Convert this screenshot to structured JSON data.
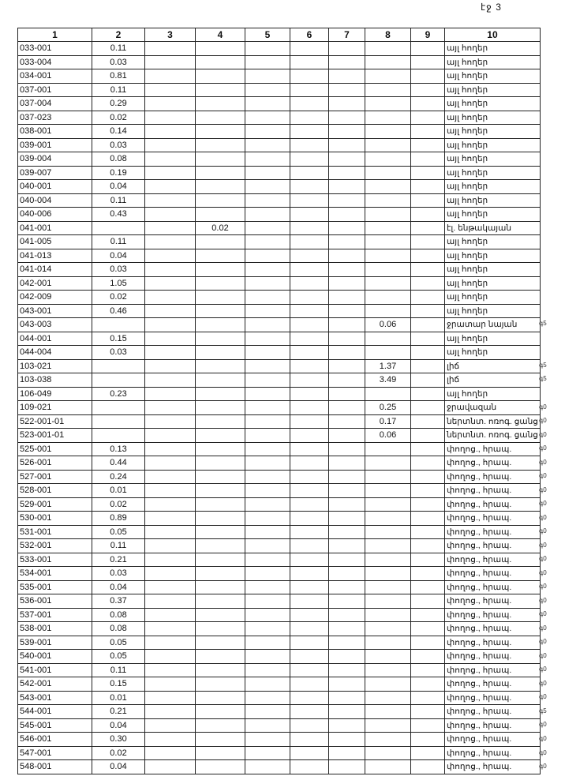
{
  "page_label": "էջ 3",
  "headers": [
    "1",
    "2",
    "3",
    "4",
    "5",
    "6",
    "7",
    "8",
    "9",
    "10"
  ],
  "rows": [
    [
      "033-001",
      "0.11",
      "",
      "",
      "այլ հողեր",
      ""
    ],
    [
      "033-004",
      "0.03",
      "",
      "",
      "այլ հողեր",
      ""
    ],
    [
      "034-001",
      "0.81",
      "",
      "",
      "այլ հողեր",
      ""
    ],
    [
      "037-001",
      "0.11",
      "",
      "",
      "այլ հողեր",
      ""
    ],
    [
      "037-004",
      "0.29",
      "",
      "",
      "այլ հողեր",
      ""
    ],
    [
      "037-023",
      "0.02",
      "",
      "",
      "այլ հողեր",
      ""
    ],
    [
      "038-001",
      "0.14",
      "",
      "",
      "այլ հողեր",
      ""
    ],
    [
      "039-001",
      "0.03",
      "",
      "",
      "այլ հողեր",
      ""
    ],
    [
      "039-004",
      "0.08",
      "",
      "",
      "այլ հողեր",
      ""
    ],
    [
      "039-007",
      "0.19",
      "",
      "",
      "այլ հողեր",
      ""
    ],
    [
      "040-001",
      "0.04",
      "",
      "",
      "այլ հողեր",
      ""
    ],
    [
      "040-004",
      "0.11",
      "",
      "",
      "այլ հողեր",
      ""
    ],
    [
      "040-006",
      "0.43",
      "",
      "",
      "այլ հողեր",
      ""
    ],
    [
      "041-001",
      "",
      "0.02",
      "",
      "էլ. ենթակայան",
      ""
    ],
    [
      "041-005",
      "0.11",
      "",
      "",
      "այլ հողեր",
      ""
    ],
    [
      "041-013",
      "0.04",
      "",
      "",
      "այլ հողեր",
      ""
    ],
    [
      "041-014",
      "0.03",
      "",
      "",
      "այլ հողեր",
      ""
    ],
    [
      "042-001",
      "1.05",
      "",
      "",
      "այլ հողեր",
      ""
    ],
    [
      "042-009",
      "0.02",
      "",
      "",
      "այլ հողեր",
      ""
    ],
    [
      "043-001",
      "0.46",
      "",
      "",
      "այլ հողեր",
      ""
    ],
    [
      "043-003",
      "",
      "",
      "0.06",
      "ջրատար նայան",
      "գ5"
    ],
    [
      "044-001",
      "0.15",
      "",
      "",
      "այլ հողեր",
      ""
    ],
    [
      "044-004",
      "0.03",
      "",
      "",
      "այլ հողեր",
      ""
    ],
    [
      "103-021",
      "",
      "",
      "1.37",
      "լիճ",
      "գ5"
    ],
    [
      "103-038",
      "",
      "",
      "3.49",
      "լիճ",
      "գ5"
    ],
    [
      "106-049",
      "0.23",
      "",
      "",
      "այլ հողեր",
      ""
    ],
    [
      "109-021",
      "",
      "",
      "0.25",
      "ջրավազան",
      "գ0"
    ],
    [
      "522-001-01",
      "",
      "",
      "0.17",
      "ներտնտ. ոռոգ. ցանց",
      "գ0"
    ],
    [
      "523-001-01",
      "",
      "",
      "0.06",
      "ներտնտ. ոռոգ. ցանց",
      "գ0"
    ],
    [
      "525-001",
      "0.13",
      "",
      "",
      "փողոց., հրապ.",
      "գ0"
    ],
    [
      "526-001",
      "0.44",
      "",
      "",
      "փողոց., հրապ.",
      "գ0"
    ],
    [
      "527-001",
      "0.24",
      "",
      "",
      "փողոց., հրապ.",
      "գ0"
    ],
    [
      "528-001",
      "0.01",
      "",
      "",
      "փողոց., հրապ.",
      "գ0"
    ],
    [
      "529-001",
      "0.02",
      "",
      "",
      "փողոց., հրապ.",
      "գ0"
    ],
    [
      "530-001",
      "0.89",
      "",
      "",
      "փողոց., հրապ.",
      "գ0"
    ],
    [
      "531-001",
      "0.05",
      "",
      "",
      "փողոց., հրապ.",
      "գ0"
    ],
    [
      "532-001",
      "0.11",
      "",
      "",
      "փողոց., հրապ.",
      "գ0"
    ],
    [
      "533-001",
      "0.21",
      "",
      "",
      "փողոց., հրապ.",
      "գ0"
    ],
    [
      "534-001",
      "0.03",
      "",
      "",
      "փողոց., հրապ.",
      "գ0"
    ],
    [
      "535-001",
      "0.04",
      "",
      "",
      "փողոց., հրապ.",
      "գ0"
    ],
    [
      "536-001",
      "0.37",
      "",
      "",
      "փողոց., հրապ.",
      "գ0"
    ],
    [
      "537-001",
      "0.08",
      "",
      "",
      "փողոց., հրապ.",
      "գ0"
    ],
    [
      "538-001",
      "0.08",
      "",
      "",
      "փողոց., հրապ.",
      "գ0"
    ],
    [
      "539-001",
      "0.05",
      "",
      "",
      "փողոց., հրապ.",
      "գ0"
    ],
    [
      "540-001",
      "0.05",
      "",
      "",
      "փողոց., հրապ.",
      "գ0"
    ],
    [
      "541-001",
      "0.11",
      "",
      "",
      "փողոց., հրապ.",
      "գ0"
    ],
    [
      "542-001",
      "0.15",
      "",
      "",
      "փողոց., հրապ.",
      "գ0"
    ],
    [
      "543-001",
      "0.01",
      "",
      "",
      "փողոց., հրապ.",
      "գ0"
    ],
    [
      "544-001",
      "0.21",
      "",
      "",
      "փողոց., հրապ.",
      "գ5"
    ],
    [
      "545-001",
      "0.04",
      "",
      "",
      "փողոց., հրապ.",
      "գ0"
    ],
    [
      "546-001",
      "0.30",
      "",
      "",
      "փողոց., հրապ.",
      "գ0"
    ],
    [
      "547-001",
      "0.02",
      "",
      "",
      "փողոց., հրապ.",
      "գ0"
    ],
    [
      "548-001",
      "0.04",
      "",
      "",
      "փողոց., հրապ.",
      "գ0"
    ]
  ]
}
